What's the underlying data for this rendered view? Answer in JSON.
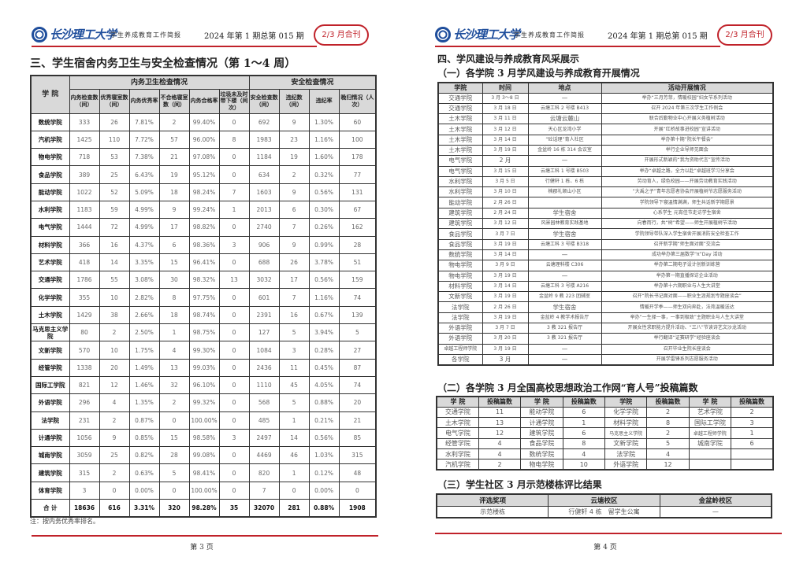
{
  "header": {
    "logo_text": "长沙理工大学",
    "subtitle": "学生养成教育工作简报",
    "issue": "2024 年第 1 期总第 015 期",
    "badge": "2/3 月合刊",
    "accent": "#c0222a",
    "logo_color": "#1f4e9c"
  },
  "page3": {
    "title": "三、学生宿舍内务卫生与安全检查情况（第 1～4 周）",
    "table": {
      "school_header": "学 院",
      "group1": "内务卫生检查情况",
      "group2": "安全检查情况",
      "columns": [
        "内务检查数（间）",
        "优秀寝室数（间）",
        "内务优秀率",
        "不合格寝室数（间）",
        "内务合格率",
        "垃圾未及时带下楼（间次）",
        "安全检查数（间）",
        "违纪数（间）",
        "违纪率",
        "晚归情况（人次）"
      ],
      "rows": [
        [
          "数统学院",
          "333",
          "26",
          "7.81%",
          "2",
          "99.40%",
          "0",
          "692",
          "9",
          "1.30%",
          "60"
        ],
        [
          "汽机学院",
          "1425",
          "110",
          "7.72%",
          "57",
          "96.00%",
          "8",
          "1983",
          "23",
          "1.16%",
          "100"
        ],
        [
          "物电学院",
          "718",
          "53",
          "7.38%",
          "21",
          "97.08%",
          "0",
          "1184",
          "19",
          "1.60%",
          "178"
        ],
        [
          "食品学院",
          "389",
          "25",
          "6.43%",
          "19",
          "95.12%",
          "0",
          "634",
          "2",
          "0.32%",
          "77"
        ],
        [
          "能动学院",
          "1022",
          "52",
          "5.09%",
          "18",
          "98.24%",
          "7",
          "1603",
          "9",
          "0.56%",
          "131"
        ],
        [
          "水利学院",
          "1183",
          "59",
          "4.99%",
          "9",
          "99.24%",
          "1",
          "2013",
          "6",
          "0.30%",
          "67"
        ],
        [
          "电气学院",
          "1444",
          "72",
          "4.99%",
          "17",
          "98.82%",
          "0",
          "2740",
          "7",
          "0.26%",
          "162"
        ],
        [
          "材料学院",
          "366",
          "16",
          "4.37%",
          "6",
          "98.36%",
          "3",
          "906",
          "9",
          "0.99%",
          "28"
        ],
        [
          "艺术学院",
          "418",
          "14",
          "3.35%",
          "15",
          "96.41%",
          "0",
          "688",
          "26",
          "3.78%",
          "51"
        ],
        [
          "交通学院",
          "1786",
          "55",
          "3.08%",
          "30",
          "98.32%",
          "13",
          "3032",
          "17",
          "0.56%",
          "159"
        ],
        [
          "化学学院",
          "355",
          "10",
          "2.82%",
          "8",
          "97.75%",
          "0",
          "601",
          "7",
          "1.16%",
          "74"
        ],
        [
          "土木学院",
          "1429",
          "38",
          "2.66%",
          "18",
          "98.74%",
          "0",
          "2391",
          "16",
          "0.67%",
          "139"
        ],
        [
          "马克思主义学院",
          "80",
          "2",
          "2.50%",
          "1",
          "98.75%",
          "0",
          "127",
          "5",
          "3.94%",
          "5"
        ],
        [
          "文新学院",
          "570",
          "10",
          "1.75%",
          "4",
          "99.30%",
          "0",
          "1084",
          "3",
          "0.28%",
          "27"
        ],
        [
          "经管学院",
          "1338",
          "20",
          "1.49%",
          "13",
          "99.03%",
          "0",
          "2436",
          "11",
          "0.45%",
          "87"
        ],
        [
          "国际工学院",
          "821",
          "12",
          "1.46%",
          "32",
          "96.10%",
          "0",
          "1110",
          "45",
          "4.05%",
          "74"
        ],
        [
          "外语学院",
          "296",
          "4",
          "1.35%",
          "2",
          "99.32%",
          "0",
          "568",
          "5",
          "0.88%",
          "20"
        ],
        [
          "法学院",
          "231",
          "2",
          "0.87%",
          "0",
          "100.00%",
          "0",
          "485",
          "1",
          "0.21%",
          "21"
        ],
        [
          "计通学院",
          "1056",
          "9",
          "0.85%",
          "15",
          "98.58%",
          "3",
          "2497",
          "14",
          "0.56%",
          "85"
        ],
        [
          "城南学院",
          "3059",
          "25",
          "0.82%",
          "28",
          "99.08%",
          "0",
          "4469",
          "46",
          "1.03%",
          "315"
        ],
        [
          "建筑学院",
          "315",
          "2",
          "0.63%",
          "5",
          "98.41%",
          "0",
          "820",
          "1",
          "0.12%",
          "48"
        ],
        [
          "体育学院",
          "3",
          "0",
          "0.00%",
          "0",
          "100.00%",
          "0",
          "7",
          "0",
          "0.00%",
          "0"
        ]
      ],
      "total": [
        "合 计",
        "18636",
        "616",
        "3.31%",
        "320",
        "98.28%",
        "35",
        "32070",
        "281",
        "0.88%",
        "1908"
      ]
    },
    "note": "注：按内务优秀率排名。",
    "page_number": "第 3 页"
  },
  "page4": {
    "title": "四、学风建设与养成教育风采展示",
    "sub1": "（一）各学院 3 月学风建设与养成教育开展情况",
    "table1": {
      "columns": [
        "学院",
        "时间",
        "地点",
        "活动开展情况"
      ],
      "rows": [
        [
          "交通学院",
          "3 月 3～8 日",
          "—",
          "举办“三月芳菲，情暖校园”妇女节系列活动"
        ],
        [
          "交通学院",
          "3 月 18 日",
          "云塘工科 2 号楼 B413",
          "召开 2024 年第三次学生工作例会"
        ],
        [
          "土木学院",
          "3 月 11 日",
          "云塘云麓山",
          "联合后勤物业中心开展义务植树活动"
        ],
        [
          "土木学院",
          "3 月 12 日",
          "天心区龙湾小学",
          "开展“红桥故事进校园”宣讲活动"
        ],
        [
          "土木学院",
          "3 月 14 日",
          "“砼话理”育人社区",
          "举办第十期“院长午餐会”"
        ],
        [
          "土木学院",
          "3 月 19 日",
          "金盆岭 16 栋 314 会议室",
          "举行企业导师见面会"
        ],
        [
          "电气学院",
          "2 月",
          "—",
          "开展形式新颖的“我为资助代言”宣传活动"
        ],
        [
          "电气学院",
          "3 月 15 日",
          "云塘工科 1 号楼 B503",
          "举办“卓越之路，全力以赴”卓越班学习分享会"
        ],
        [
          "水利学院",
          "3 月 5 日",
          "行健轩 1 栋、6 栋",
          "劳动育人，绿色校园——开展劳动教育实践活动"
        ],
        [
          "水利学院",
          "3 月 10 日",
          "楠郡礼顿山小区",
          "“大禹之子”青年志愿者协会开展植树节志愿服务活动"
        ],
        [
          "能动学院",
          "2 月 26 日",
          "",
          "学院领导下寝温情满满，师生共话新学期愿景"
        ],
        [
          "建筑学院",
          "2 月 24 日",
          "学生宿舍",
          "心系学生 元宵佳节走访学生宿舍"
        ],
        [
          "建筑学院",
          "3 月 12 日",
          "风景园林教育实践基地",
          "向春而行，共“树”希望——师生开展植树节活动"
        ],
        [
          "食品学院",
          "3 月 7 日",
          "学生宿舍",
          "学院领导带队深入学生宿舍开展消防安全检查工作"
        ],
        [
          "食品学院",
          "3 月 19 日",
          "云塘工科 3 号楼 B318",
          "召开新学期“师生面对面”交流会"
        ],
        [
          "数统学院",
          "3 月 14 日",
          "—",
          "成功举办第三届数学“π”Day 活动"
        ],
        [
          "物电学院",
          "3 月 9 日",
          "云塘理科楼 C306",
          "举办第二期电子设计创新训练营"
        ],
        [
          "物电学院",
          "3 月 19 日",
          "—",
          "举办第一期直播探访企业活动"
        ],
        [
          "材料学院",
          "3 月 14 日",
          "云塘工科 3 号楼 A216",
          "举办第十六期职业与人生大讲堂"
        ],
        [
          "文新学院",
          "3 月 19 日",
          "金盆岭 9 教 223 团辅室",
          "召开“院长书记面对面——职业生涯规划专题座谈会”"
        ],
        [
          "法学院",
          "2 月 26 日",
          "学生宿舍",
          "情暖开学季——师生双向奔赴，法苑温暖送达"
        ],
        [
          "法学院",
          "3 月 19 日",
          "金盆岭 4 教学术报告厅",
          "举办“一生择一事，一事到极致”主题职业与人生大讲堂"
        ],
        [
          "外语学院",
          "3 月 7 日",
          "3 教 321 报告厅",
          "开展女性求职能力提升活动、“三八”节读诗艺文沙龙活动"
        ],
        [
          "外语学院",
          "3 月 20 日",
          "3 教 321 报告厅",
          "举行翻译“证赛研学”经验座谈会"
        ],
        [
          "卓越工程师学院",
          "3 月 19 日",
          "—",
          "召开毕业生院长座谈会"
        ],
        [
          "各学院",
          "3 月",
          "—",
          "开展学雷锋系列志愿服务活动"
        ]
      ]
    },
    "sub2": "（二）各学院 3 月全国高校思想政治工作网“育人号”投稿篇数",
    "table2": {
      "columns": [
        "学 院",
        "投稿篇数",
        "学 院",
        "投稿篇数",
        "学院",
        "投稿篇数",
        "学 院",
        "投稿篇数"
      ],
      "rows": [
        [
          "交通学院",
          "11",
          "能动学院",
          "6",
          "化学学院",
          "2",
          "艺术学院",
          "2"
        ],
        [
          "土木学院",
          "13",
          "计通学院",
          "1",
          "材料学院",
          "8",
          "国际工学院",
          "3"
        ],
        [
          "电气学院",
          "12",
          "建筑学院",
          "6",
          "马克思主义学院",
          "2",
          "卓越工程师学院",
          "1"
        ],
        [
          "经管学院",
          "4",
          "食品学院",
          "8",
          "文新学院",
          "5",
          "城南学院",
          "6"
        ],
        [
          "水利学院",
          "4",
          "数统学院",
          "4",
          "法学院",
          "4",
          "",
          ""
        ],
        [
          "汽机学院",
          "2",
          "物电学院",
          "10",
          "外语学院",
          "12",
          "",
          ""
        ]
      ]
    },
    "sub3": "（三）学生社区 3 月示范楼栋评比结果",
    "table3": {
      "columns": [
        "评选奖项",
        "云塘校区",
        "金盆岭校区"
      ],
      "rows": [
        [
          "示范楼栋",
          "行健轩 4 栋　留学生公寓",
          "—"
        ]
      ]
    },
    "page_number": "第 4 页"
  }
}
